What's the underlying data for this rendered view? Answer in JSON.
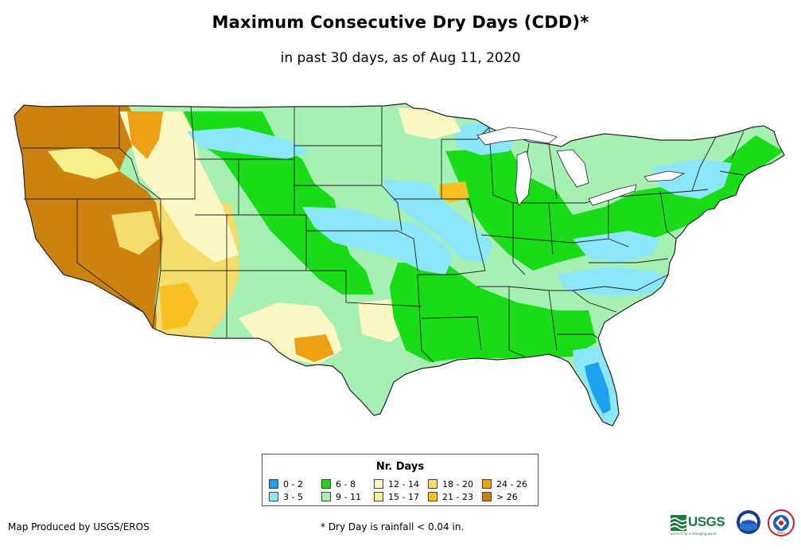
{
  "title": "Maximum Consecutive Dry Days (CDD)*",
  "subtitle": "in past 30 days, as of Aug 11, 2020",
  "legend": {
    "title": "Nr. Days",
    "items": [
      {
        "label": "0 - 2",
        "color": "#1ea0f0"
      },
      {
        "label": "3 - 5",
        "color": "#8ae6f8"
      },
      {
        "label": "6 - 8",
        "color": "#18dc18"
      },
      {
        "label": "9 - 11",
        "color": "#a6f0b4"
      },
      {
        "label": "12 - 14",
        "color": "#fcf8c4"
      },
      {
        "label": "15 - 17",
        "color": "#f6f08a"
      },
      {
        "label": "18 - 20",
        "color": "#f6dc6c"
      },
      {
        "label": "21 - 23",
        "color": "#f8c020"
      },
      {
        "label": "24 - 26",
        "color": "#eea014"
      },
      {
        "label": "> 26",
        "color": "#cc820e"
      }
    ]
  },
  "credit": "Map Produced by USGS/EROS",
  "footnote": "* Dry Day is rainfall < 0.04 in.",
  "logos": {
    "usgs": "USGS",
    "usgs_tagline": "science for a changing world",
    "noaa": "noaa",
    "nws": "NWS"
  },
  "map": {
    "region": "Contiguous United States",
    "colors": {
      "land_default": "#a6f0b4",
      "state_border": "#222222",
      "water": "#ffffff"
    }
  }
}
